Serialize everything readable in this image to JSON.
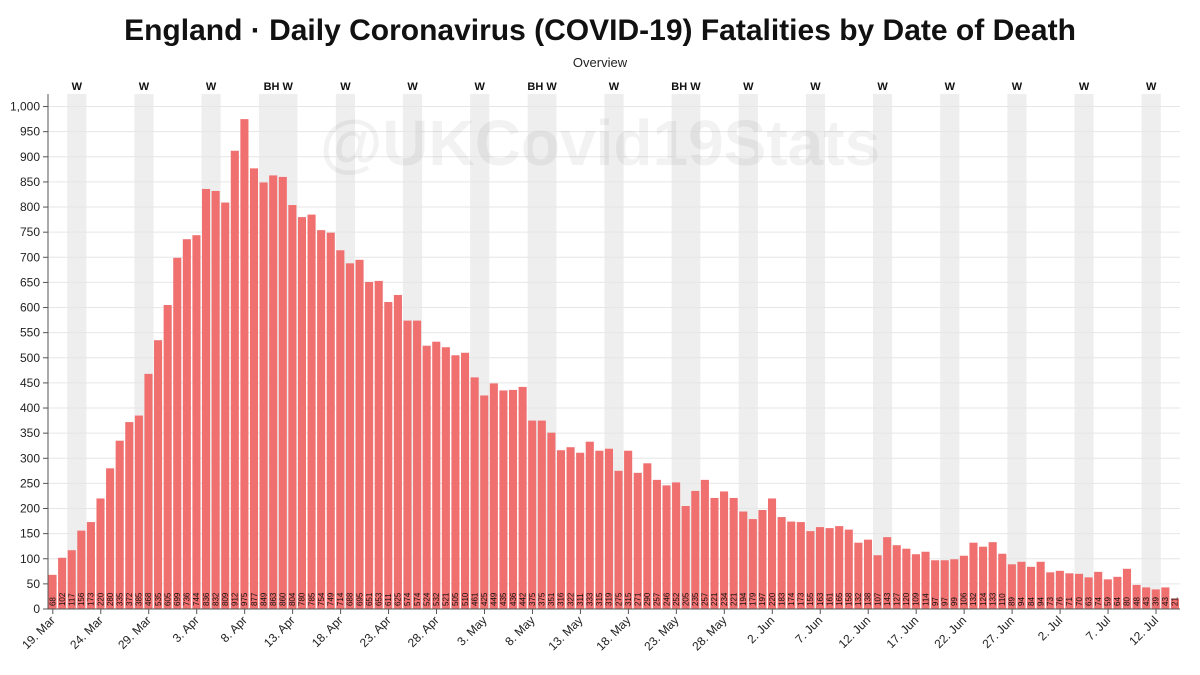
{
  "title": "England · Daily Coronavirus (COVID-19) Fatalities by Date of Death",
  "subtitle": "Overview",
  "watermark": "@UKCovid19Stats",
  "colors": {
    "bar": "#f07070",
    "weekend_band": "#eeeeee",
    "grid": "#e6e6e6",
    "text": "#222222"
  },
  "chart_data": {
    "type": "bar",
    "title": "England · Daily Coronavirus (COVID-19) Fatalities by Date of Death",
    "subtitle": "Overview",
    "xlabel": "",
    "ylabel": "",
    "ylim": [
      0,
      1025
    ],
    "grid": true,
    "start_date": "19. Mar",
    "values": [
      68,
      102,
      117,
      156,
      173,
      220,
      280,
      335,
      372,
      385,
      468,
      535,
      605,
      699,
      736,
      744,
      836,
      832,
      809,
      912,
      975,
      877,
      849,
      863,
      860,
      804,
      780,
      785,
      754,
      749,
      714,
      688,
      695,
      651,
      653,
      611,
      625,
      574,
      574,
      524,
      532,
      521,
      505,
      510,
      461,
      425,
      449,
      435,
      436,
      442,
      375,
      375,
      351,
      316,
      322,
      311,
      333,
      315,
      319,
      275,
      315,
      271,
      290,
      257,
      246,
      252,
      205,
      235,
      257,
      221,
      234,
      221,
      194,
      179,
      197,
      220,
      183,
      174,
      173,
      155,
      163,
      161,
      165,
      158,
      132,
      138,
      107,
      143,
      127,
      120,
      109,
      114,
      97,
      97,
      99,
      106,
      132,
      124,
      133,
      110,
      89,
      94,
      84,
      94,
      73,
      76,
      71,
      70,
      63,
      74,
      59,
      64,
      80,
      48,
      43,
      39,
      43,
      21
    ],
    "y_ticks": [
      "0",
      "50",
      "100",
      "150",
      "200",
      "250",
      "300",
      "350",
      "400",
      "450",
      "500",
      "550",
      "600",
      "650",
      "700",
      "750",
      "800",
      "850",
      "900",
      "950",
      "1,000"
    ],
    "x_ticks": [
      {
        "index": 0,
        "label": "19. Mar"
      },
      {
        "index": 5,
        "label": "24. Mar"
      },
      {
        "index": 10,
        "label": "29. Mar"
      },
      {
        "index": 15,
        "label": "3. Apr"
      },
      {
        "index": 20,
        "label": "8. Apr"
      },
      {
        "index": 25,
        "label": "13. Apr"
      },
      {
        "index": 30,
        "label": "18. Apr"
      },
      {
        "index": 35,
        "label": "23. Apr"
      },
      {
        "index": 40,
        "label": "28. Apr"
      },
      {
        "index": 45,
        "label": "3. May"
      },
      {
        "index": 50,
        "label": "8. May"
      },
      {
        "index": 55,
        "label": "13. May"
      },
      {
        "index": 60,
        "label": "18. May"
      },
      {
        "index": 65,
        "label": "23. May"
      },
      {
        "index": 70,
        "label": "28. May"
      },
      {
        "index": 75,
        "label": "2. Jun"
      },
      {
        "index": 80,
        "label": "7. Jun"
      },
      {
        "index": 85,
        "label": "12. Jun"
      },
      {
        "index": 90,
        "label": "17. Jun"
      },
      {
        "index": 95,
        "label": "22. Jun"
      },
      {
        "index": 100,
        "label": "27. Jun"
      },
      {
        "index": 105,
        "label": "2. Jul"
      },
      {
        "index": 110,
        "label": "7. Jul"
      },
      {
        "index": 115,
        "label": "12. Jul"
      }
    ],
    "bands": [
      {
        "start": 2,
        "length": 2,
        "label": "W"
      },
      {
        "start": 9,
        "length": 2,
        "label": "W"
      },
      {
        "start": 16,
        "length": 2,
        "label": "W"
      },
      {
        "start": 22,
        "length": 4,
        "label": "BH W"
      },
      {
        "start": 30,
        "length": 2,
        "label": "W"
      },
      {
        "start": 37,
        "length": 2,
        "label": "W"
      },
      {
        "start": 44,
        "length": 2,
        "label": "W"
      },
      {
        "start": 50,
        "length": 3,
        "label": "BH W"
      },
      {
        "start": 58,
        "length": 2,
        "label": "W"
      },
      {
        "start": 65,
        "length": 3,
        "label": "BH W"
      },
      {
        "start": 72,
        "length": 2,
        "label": "W"
      },
      {
        "start": 79,
        "length": 2,
        "label": "W"
      },
      {
        "start": 86,
        "length": 2,
        "label": "W"
      },
      {
        "start": 93,
        "length": 2,
        "label": "W"
      },
      {
        "start": 100,
        "length": 2,
        "label": "W"
      },
      {
        "start": 107,
        "length": 2,
        "label": "W"
      },
      {
        "start": 114,
        "length": 2,
        "label": "W"
      }
    ]
  }
}
